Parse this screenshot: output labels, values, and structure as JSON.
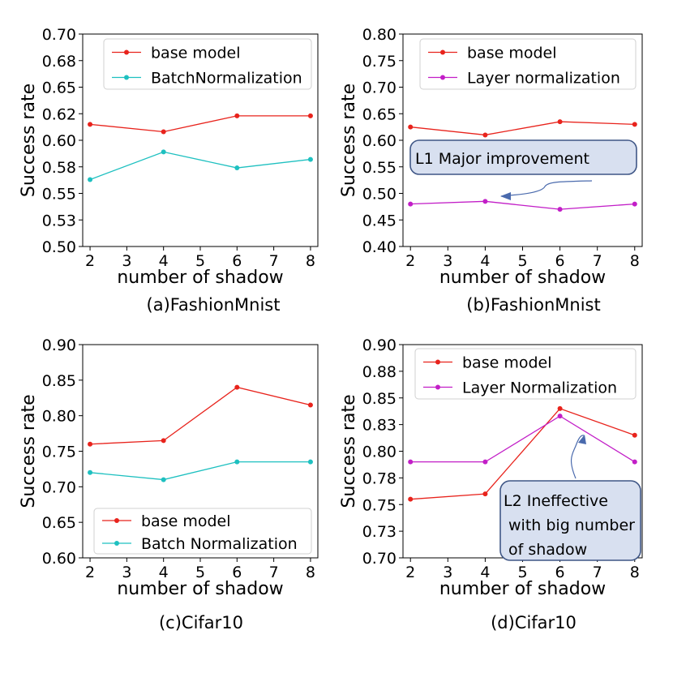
{
  "chart_data": [
    {
      "id": "a",
      "type": "line",
      "caption": "(a)FashionMnist",
      "xlabel": "number of shadow",
      "ylabel": "Success rate",
      "x": [
        2,
        4,
        6,
        8
      ],
      "xlim": [
        1.8,
        8.2
      ],
      "xticks": [
        "2",
        "3",
        "4",
        "5",
        "6",
        "7",
        "8"
      ],
      "xtick_values": [
        2,
        3,
        4,
        5,
        6,
        7,
        8
      ],
      "ylim": [
        0.5,
        0.7
      ],
      "yticks": [
        "0.50",
        "0.53",
        "0.55",
        "0.58",
        "0.60",
        "0.62",
        "0.65",
        "0.68",
        "0.70"
      ],
      "ytick_values": [
        0.5,
        0.525,
        0.55,
        0.575,
        0.6,
        0.625,
        0.65,
        0.675,
        0.7
      ],
      "legend_position": "top",
      "series": [
        {
          "name": "base model",
          "color": "#e8231c",
          "values": [
            0.615,
            0.608,
            0.623,
            0.623
          ]
        },
        {
          "name": "BatchNormalization",
          "color": "#1ec0c0",
          "values": [
            0.563,
            0.589,
            0.574,
            0.582
          ]
        }
      ],
      "annotations": []
    },
    {
      "id": "b",
      "type": "line",
      "caption": "(b)FashionMnist",
      "xlabel": "number of shadow",
      "ylabel": "Success rate",
      "x": [
        2,
        4,
        6,
        8
      ],
      "xlim": [
        1.8,
        8.2
      ],
      "xticks": [
        "2",
        "3",
        "4",
        "5",
        "6",
        "7",
        "8"
      ],
      "xtick_values": [
        2,
        3,
        4,
        5,
        6,
        7,
        8
      ],
      "ylim": [
        0.4,
        0.8
      ],
      "yticks": [
        "0.40",
        "0.45",
        "0.50",
        "0.55",
        "0.60",
        "0.65",
        "0.70",
        "0.75",
        "0.80"
      ],
      "ytick_values": [
        0.4,
        0.45,
        0.5,
        0.55,
        0.6,
        0.65,
        0.7,
        0.75,
        0.8
      ],
      "legend_position": "top",
      "series": [
        {
          "name": "base model",
          "color": "#e8231c",
          "values": [
            0.625,
            0.61,
            0.635,
            0.63
          ]
        },
        {
          "name": "Layer normalization",
          "color": "#c21ec7",
          "values": [
            0.48,
            0.485,
            0.47,
            0.48
          ]
        }
      ],
      "annotations": [
        {
          "lines": [
            "L1 Major improvement"
          ],
          "points_to": [
            4.3,
            0.485
          ],
          "box_anchor": [
            7.7,
            0.52
          ]
        }
      ]
    },
    {
      "id": "c",
      "type": "line",
      "caption": "(c)Cifar10",
      "xlabel": "number of shadow",
      "ylabel": "Success rate",
      "x": [
        2,
        4,
        6,
        8
      ],
      "xlim": [
        1.8,
        8.2
      ],
      "xticks": [
        "2",
        "3",
        "4",
        "5",
        "6",
        "7",
        "8"
      ],
      "xtick_values": [
        2,
        3,
        4,
        5,
        6,
        7,
        8
      ],
      "ylim": [
        0.6,
        0.9
      ],
      "yticks": [
        "0.60",
        "0.65",
        "0.70",
        "0.75",
        "0.80",
        "0.85",
        "0.90"
      ],
      "ytick_values": [
        0.6,
        0.65,
        0.7,
        0.75,
        0.8,
        0.85,
        0.9
      ],
      "legend_position": "bottom",
      "series": [
        {
          "name": "base model",
          "color": "#e8231c",
          "values": [
            0.76,
            0.765,
            0.84,
            0.815
          ]
        },
        {
          "name": "Batch Normalization",
          "color": "#1ec0c0",
          "values": [
            0.72,
            0.71,
            0.735,
            0.735
          ]
        }
      ],
      "annotations": []
    },
    {
      "id": "d",
      "type": "line",
      "caption": "(d)Cifar10",
      "xlabel": "number of shadow",
      "ylabel": "Success rate",
      "x": [
        2,
        4,
        6,
        8
      ],
      "xlim": [
        1.8,
        8.2
      ],
      "xticks": [
        "2",
        "3",
        "4",
        "5",
        "6",
        "7",
        "8"
      ],
      "xtick_values": [
        2,
        3,
        4,
        5,
        6,
        7,
        8
      ],
      "ylim": [
        0.7,
        0.9
      ],
      "yticks": [
        "0.70",
        "0.73",
        "0.75",
        "0.78",
        "0.80",
        "0.83",
        "0.85",
        "0.88",
        "0.90"
      ],
      "ytick_values": [
        0.7,
        0.725,
        0.75,
        0.775,
        0.8,
        0.825,
        0.85,
        0.875,
        0.9
      ],
      "legend_position": "top",
      "series": [
        {
          "name": "base model",
          "color": "#e8231c",
          "values": [
            0.755,
            0.76,
            0.84,
            0.815
          ]
        },
        {
          "name": "Layer Normalization",
          "color": "#c21ec7",
          "values": [
            0.79,
            0.79,
            0.833,
            0.79
          ]
        }
      ],
      "annotations": [
        {
          "lines": [
            "L2 Ineffective",
            "with big number",
            "of shadow"
          ],
          "points_to": [
            6.6,
            0.826
          ],
          "box_anchor": [
            6.3,
            0.775
          ]
        }
      ]
    }
  ]
}
